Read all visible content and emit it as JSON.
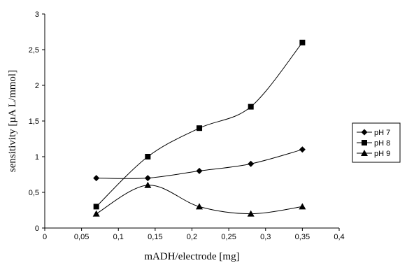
{
  "chart_data": {
    "type": "line",
    "xlabel": "mADH/electrode [mg]",
    "ylabel": "sensitivity [µA L/mmol]",
    "xlim": [
      0,
      0.4
    ],
    "ylim": [
      0,
      3
    ],
    "x_ticks": [
      "0",
      "0,05",
      "0,1",
      "0,15",
      "0,2",
      "0,25",
      "0,3",
      "0,35",
      "0,4"
    ],
    "y_ticks": [
      "0",
      "0,5",
      "1",
      "1,5",
      "2",
      "2,5",
      "3"
    ],
    "grid": false,
    "legend_position": "right",
    "series": [
      {
        "name": "pH 7",
        "marker": "diamond",
        "x": [
          0.07,
          0.14,
          0.21,
          0.28,
          0.35
        ],
        "y": [
          0.7,
          0.7,
          0.8,
          0.9,
          1.1
        ]
      },
      {
        "name": "pH 8",
        "marker": "square",
        "x": [
          0.07,
          0.14,
          0.21,
          0.28,
          0.35
        ],
        "y": [
          0.3,
          1.0,
          1.4,
          1.7,
          2.6
        ]
      },
      {
        "name": "pH 9",
        "marker": "triangle",
        "x": [
          0.07,
          0.14,
          0.21,
          0.28,
          0.35
        ],
        "y": [
          0.2,
          0.6,
          0.3,
          0.2,
          0.3
        ]
      }
    ]
  }
}
